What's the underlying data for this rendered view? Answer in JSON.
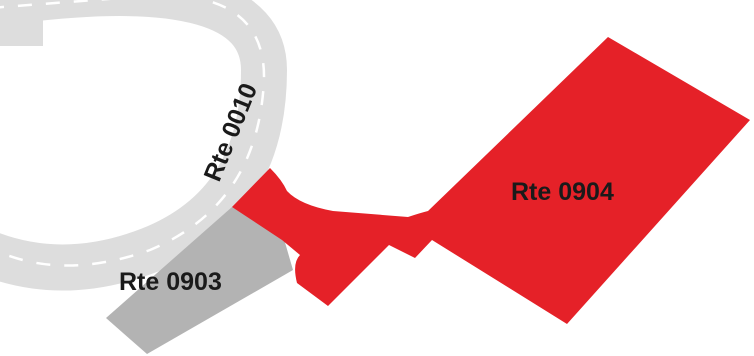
{
  "map": {
    "roads": [
      {
        "id": "rte-0010",
        "label": "Rte 0010"
      },
      {
        "id": "rte-0903",
        "label": "Rte 0903"
      },
      {
        "id": "rte-0904",
        "label": "Rte 0904"
      }
    ],
    "colors": {
      "background": "#ffffff",
      "ring_road": "#dddddd",
      "ring_road_dash": "#ffffff",
      "road_0903": "#b3b3b3",
      "highlighted_area": "#e52128",
      "label_text": "#1a1a1a"
    }
  }
}
